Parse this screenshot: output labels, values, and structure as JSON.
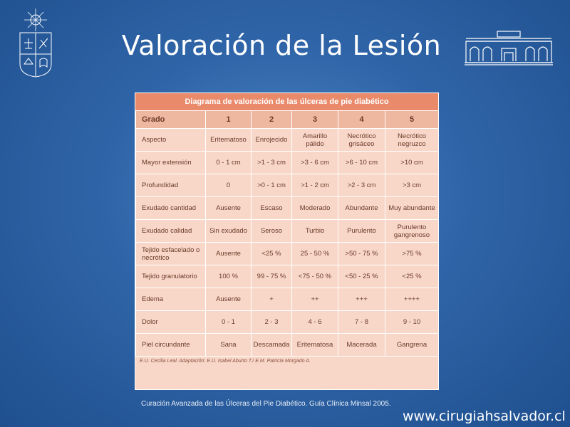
{
  "slide": {
    "title": "Valoración de la Lesión",
    "source": "Curación Avanzada de las Úlceras del Pie Diabético. Guía Clínica Minsal 2005.",
    "url": "www.cirugiahsalvador.cl"
  },
  "logos": {
    "left": "university-crest-icon",
    "right": "hospital-building-icon"
  },
  "table": {
    "title": "Diagrama de valoración de las úlceras de pie diabético",
    "headers": [
      "Grado",
      "1",
      "2",
      "3",
      "4",
      "5"
    ],
    "rows": [
      [
        "Aspecto",
        "Eritematoso",
        "Enrojecido",
        "Amarillo pálido",
        "Necrótico grisáceo",
        "Necrótico negruzco"
      ],
      [
        "Mayor extensión",
        "0 - 1 cm",
        ">1 - 3 cm",
        ">3 - 6 cm",
        ">6 - 10 cm",
        ">10 cm"
      ],
      [
        "Profundidad",
        "0",
        ">0 - 1 cm",
        ">1 - 2 cm",
        ">2 - 3 cm",
        ">3 cm"
      ],
      [
        "Exudado cantidad",
        "Ausente",
        "Escaso",
        "Moderado",
        "Abundante",
        "Muy abundante"
      ],
      [
        "Exudado calidad",
        "Sin exudado",
        "Seroso",
        "Turbio",
        "Purulento",
        "Purulento gangrenoso"
      ],
      [
        "Tejido esfacelado o necrótico",
        "Ausente",
        "<25 %",
        "25 - 50 %",
        ">50 - 75 %",
        ">75 %"
      ],
      [
        "Tejido granulatorio",
        "100 %",
        "99 - 75 %",
        "<75 - 50 %",
        "<50 - 25 %",
        "<25 %"
      ],
      [
        "Edema",
        "Ausente",
        "+",
        "++",
        "+++",
        "++++"
      ],
      [
        "Dolor",
        "0 - 1",
        "2 - 3",
        "4 - 6",
        "7 - 8",
        "9 - 10"
      ],
      [
        "Piel circundante",
        "Sana",
        "Descamada",
        "Eritematosa",
        "Macerada",
        "Gangrena"
      ]
    ],
    "credit": "E.U. Cecilia Leal. Adaptación: E.U. Isabel Aburto T./ E.M. Patricia Morgado A."
  }
}
